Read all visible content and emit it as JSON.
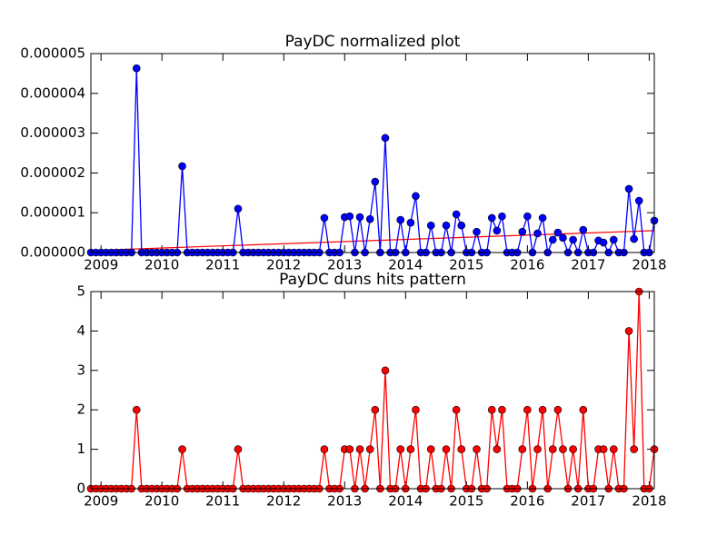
{
  "chart_data": [
    {
      "type": "line",
      "title": "PayDC normalized plot",
      "categories": [
        null,
        null,
        "2009",
        null,
        null,
        null,
        null,
        null,
        null,
        null,
        null,
        null,
        null,
        null,
        "2010",
        null,
        null,
        null,
        null,
        null,
        null,
        null,
        null,
        null,
        null,
        null,
        "2011",
        null,
        null,
        null,
        null,
        null,
        null,
        null,
        null,
        null,
        null,
        null,
        "2012",
        null,
        null,
        null,
        null,
        null,
        null,
        null,
        null,
        null,
        null,
        null,
        "2013",
        null,
        null,
        null,
        null,
        null,
        null,
        null,
        null,
        null,
        null,
        null,
        "2014",
        null,
        null,
        null,
        null,
        null,
        null,
        null,
        null,
        null,
        null,
        null,
        "2015",
        null,
        null,
        null,
        null,
        null,
        null,
        null,
        null,
        null,
        null,
        null,
        "2016",
        null,
        null,
        null,
        null,
        null,
        null,
        null,
        null,
        null,
        null,
        null,
        "2017",
        null,
        null,
        null,
        null,
        null,
        null,
        null,
        null,
        null,
        null,
        null,
        "2018",
        null
      ],
      "series": [
        {
          "color": "#0000ff",
          "values": [
            0,
            0,
            0,
            0,
            0,
            0,
            0,
            0,
            0,
            4.63e-06,
            0,
            0,
            0,
            0,
            0,
            0,
            0,
            0,
            2.17e-06,
            0,
            0,
            0,
            0,
            0,
            0,
            0,
            0,
            0,
            0,
            1.1e-06,
            0,
            0,
            0,
            0,
            0,
            0,
            0,
            0,
            0,
            0,
            0,
            0,
            0,
            0,
            0,
            0,
            8.7e-07,
            0,
            0,
            0,
            8.9e-07,
            9.1e-07,
            0,
            8.9e-07,
            0,
            8.4e-07,
            1.78e-06,
            0,
            2.88e-06,
            0,
            0,
            8.2e-07,
            0,
            7.5e-07,
            1.42e-06,
            0,
            0,
            6.8e-07,
            0,
            0,
            6.8e-07,
            0,
            9.6e-07,
            6.8e-07,
            0,
            0,
            5.2e-07,
            0,
            0,
            8.7e-07,
            5.5e-07,
            9.1e-07,
            0,
            0,
            0,
            5.2e-07,
            9.1e-07,
            0,
            4.8e-07,
            8.7e-07,
            0,
            3.2e-07,
            5e-07,
            3.7e-07,
            0,
            3.2e-07,
            0,
            5.7e-07,
            0,
            0,
            3e-07,
            2.5e-07,
            0,
            3.2e-07,
            0,
            0,
            1.6e-06,
            3.4e-07,
            1.3e-06,
            0,
            0,
            8e-07
          ]
        }
      ],
      "trend": {
        "color": "#ff0000",
        "values": [
          5e-08,
          5.5e-07
        ]
      },
      "ylim": [
        0,
        5e-06
      ],
      "yticks": [
        {
          "value": 0,
          "label": "0.000000"
        },
        {
          "value": 1e-06,
          "label": "0.000001"
        },
        {
          "value": 2e-06,
          "label": "0.000002"
        },
        {
          "value": 3e-06,
          "label": "0.000003"
        },
        {
          "value": 4e-06,
          "label": "0.000004"
        },
        {
          "value": 5e-06,
          "label": "0.000005"
        }
      ]
    },
    {
      "type": "line",
      "title": "PayDC duns hits pattern",
      "categories": [
        null,
        null,
        "2009",
        null,
        null,
        null,
        null,
        null,
        null,
        null,
        null,
        null,
        null,
        null,
        "2010",
        null,
        null,
        null,
        null,
        null,
        null,
        null,
        null,
        null,
        null,
        null,
        "2011",
        null,
        null,
        null,
        null,
        null,
        null,
        null,
        null,
        null,
        null,
        null,
        "2012",
        null,
        null,
        null,
        null,
        null,
        null,
        null,
        null,
        null,
        null,
        null,
        "2013",
        null,
        null,
        null,
        null,
        null,
        null,
        null,
        null,
        null,
        null,
        null,
        "2014",
        null,
        null,
        null,
        null,
        null,
        null,
        null,
        null,
        null,
        null,
        null,
        "2015",
        null,
        null,
        null,
        null,
        null,
        null,
        null,
        null,
        null,
        null,
        null,
        "2016",
        null,
        null,
        null,
        null,
        null,
        null,
        null,
        null,
        null,
        null,
        null,
        "2017",
        null,
        null,
        null,
        null,
        null,
        null,
        null,
        null,
        null,
        null,
        null,
        "2018",
        null
      ],
      "series": [
        {
          "color": "#ff0000",
          "values": [
            0,
            0,
            0,
            0,
            0,
            0,
            0,
            0,
            0,
            2,
            0,
            0,
            0,
            0,
            0,
            0,
            0,
            0,
            1,
            0,
            0,
            0,
            0,
            0,
            0,
            0,
            0,
            0,
            0,
            1,
            0,
            0,
            0,
            0,
            0,
            0,
            0,
            0,
            0,
            0,
            0,
            0,
            0,
            0,
            0,
            0,
            1,
            0,
            0,
            0,
            1,
            1,
            0,
            1,
            0,
            1,
            2,
            0,
            3,
            0,
            0,
            1,
            0,
            1,
            2,
            0,
            0,
            1,
            0,
            0,
            1,
            0,
            2,
            1,
            0,
            0,
            1,
            0,
            0,
            2,
            1,
            2,
            0,
            0,
            0,
            1,
            2,
            0,
            1,
            2,
            0,
            1,
            2,
            1,
            0,
            1,
            0,
            2,
            0,
            0,
            1,
            1,
            0,
            1,
            0,
            0,
            4,
            1,
            5,
            0,
            0,
            1
          ]
        }
      ],
      "ylim": [
        0,
        5
      ],
      "yticks": [
        0,
        1,
        2,
        3,
        4,
        5
      ]
    }
  ]
}
